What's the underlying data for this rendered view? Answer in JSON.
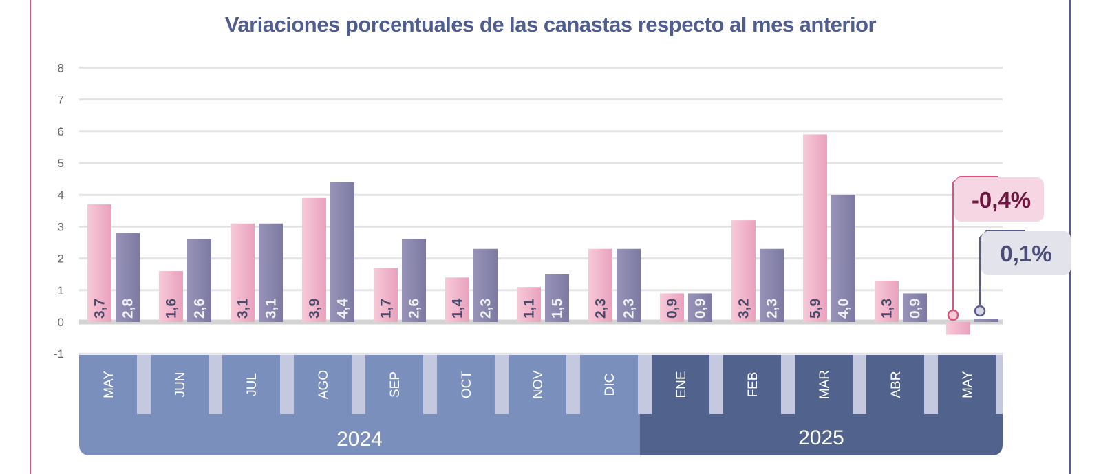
{
  "title": "Variaciones porcentuales de las canastas respecto al mes anterior",
  "colors": {
    "series_a": "#eaa1bd",
    "series_b": "#7d7aa2",
    "months_2024": "#7b8fbd",
    "months_2025": "#51628d",
    "gap": "#c4c9df",
    "grid": "#e3e3e3",
    "frame_left": "#d9567f",
    "frame_right": "#5a5b8a",
    "callout_a_bg": "#f7d6e3",
    "callout_a_text": "#6e1740",
    "callout_b_bg": "#e3e3ec",
    "callout_b_text": "#4b4c78"
  },
  "chart_data": {
    "type": "bar",
    "title": "Variaciones porcentuales de las canastas respecto al mes anterior",
    "categories": [
      "MAY",
      "JUN",
      "JUL",
      "AGO",
      "SEP",
      "OCT",
      "NOV",
      "DIC",
      "ENE",
      "FEB",
      "MAR",
      "ABR",
      "MAY"
    ],
    "years": [
      {
        "label": "2024",
        "months": 8
      },
      {
        "label": "2025",
        "months": 5
      }
    ],
    "series": [
      {
        "values": [
          3.7,
          1.6,
          3.1,
          3.9,
          1.7,
          1.4,
          1.1,
          2.3,
          0.9,
          3.2,
          5.9,
          1.3,
          -0.4
        ],
        "labels": [
          "3,7",
          "1,6",
          "3,1",
          "3,9",
          "1,7",
          "1,4",
          "1,1",
          "2,3",
          "0,9",
          "3,2",
          "5,9",
          "1,3",
          ""
        ]
      },
      {
        "values": [
          2.8,
          2.6,
          3.1,
          4.4,
          2.6,
          2.3,
          1.5,
          2.3,
          0.9,
          2.3,
          4.0,
          0.9,
          0.1
        ],
        "labels": [
          "2,8",
          "2,6",
          "3,1",
          "4,4",
          "2,6",
          "2,3",
          "1,5",
          "2,3",
          "0,9",
          "2,3",
          "4,0",
          "0,9",
          ""
        ]
      }
    ],
    "yticks": [
      "-1",
      "0",
      "1",
      "2",
      "3",
      "4",
      "5",
      "6",
      "7",
      "8"
    ],
    "ylim": [
      -1,
      8
    ],
    "grid": true,
    "callouts": [
      "-0,4%",
      "0,1%"
    ]
  }
}
